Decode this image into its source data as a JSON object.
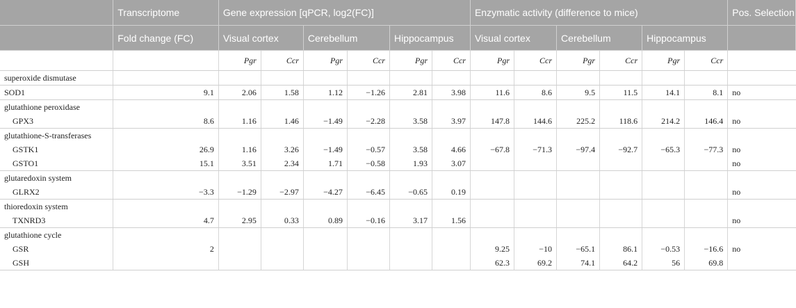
{
  "header": {
    "top": {
      "transcriptome": "Transcriptome",
      "gene_expression": "Gene expression [qPCR, log2(FC)]",
      "enzymatic_activity": "Enzymatic activity (difference to mice)",
      "pos_selection": "Pos. Selection"
    },
    "sub": {
      "fold_change": "Fold change (FC)",
      "ge_visual": "Visual cortex",
      "ge_cerebellum": "Cerebellum",
      "ge_hippocampus": "Hippocampus",
      "ea_visual": "Visual cortex",
      "ea_cerebellum": "Cerebellum",
      "ea_hippocampus": "Hippocampus"
    },
    "species": [
      "Pgr",
      "Ccr",
      "Pgr",
      "Ccr",
      "Pgr",
      "Ccr",
      "Pgr",
      "Ccr",
      "Pgr",
      "Ccr",
      "Pgr",
      "Ccr"
    ]
  },
  "groups": [
    {
      "name": "superoxide dismutase",
      "rows": [
        {
          "gene": "SOD1",
          "fc": "9.1",
          "ge": [
            "2.06",
            "1.58",
            "1.12",
            "−1.26",
            "2.81",
            "3.98"
          ],
          "ea": [
            "11.6",
            "8.6",
            "9.5",
            "11.5",
            "14.1",
            "8.1"
          ],
          "pos": "no"
        }
      ]
    },
    {
      "name": "glutathione peroxidase",
      "rows": [
        {
          "gene": "GPX3",
          "fc": "8.6",
          "ge": [
            "1.16",
            "1.46",
            "−1.49",
            "−2.28",
            "3.58",
            "3.97"
          ],
          "ea": [
            "147.8",
            "144.6",
            "225.2",
            "118.6",
            "214.2",
            "146.4"
          ],
          "pos": "no"
        }
      ]
    },
    {
      "name": "glutathione-S-transferases",
      "rows": [
        {
          "gene": "GSTK1",
          "fc": "26.9",
          "ge": [
            "1.16",
            "3.26",
            "−1.49",
            "−0.57",
            "3.58",
            "4.66"
          ],
          "ea": [
            "−67.8",
            "−71.3",
            "−97.4",
            "−92.7",
            "−65.3",
            "−77.3"
          ],
          "pos": "no"
        },
        {
          "gene": "GSTO1",
          "fc": "15.1",
          "ge": [
            "3.51",
            "2.34",
            "1.71",
            "−0.58",
            "1.93",
            "3.07"
          ],
          "ea": [
            "",
            "",
            "",
            "",
            "",
            ""
          ],
          "pos": "no"
        }
      ]
    },
    {
      "name": "glutaredoxin system",
      "rows": [
        {
          "gene": "GLRX2",
          "fc": "−3.3",
          "ge": [
            "−1.29",
            "−2.97",
            "−4.27",
            "−6.45",
            "−0.65",
            "0.19"
          ],
          "ea": [
            "",
            "",
            "",
            "",
            "",
            ""
          ],
          "pos": "no"
        }
      ]
    },
    {
      "name": "thioredoxin system",
      "rows": [
        {
          "gene": "TXNRD3",
          "fc": "4.7",
          "ge": [
            "2.95",
            "0.33",
            "0.89",
            "−0.16",
            "3.17",
            "1.56"
          ],
          "ea": [
            "",
            "",
            "",
            "",
            "",
            ""
          ],
          "pos": "no"
        }
      ]
    },
    {
      "name": "glutathione cycle",
      "rows": [
        {
          "gene": "GSR",
          "fc": "2",
          "ge": [
            "",
            "",
            "",
            "",
            "",
            ""
          ],
          "ea": [
            "9.25",
            "−10",
            "−65.1",
            "86.1",
            "−0.53",
            "−16.6"
          ],
          "pos": "no"
        },
        {
          "gene": "GSH",
          "fc": "",
          "ge": [
            "",
            "",
            "",
            "",
            "",
            ""
          ],
          "ea": [
            "62.3",
            "69.2",
            "74.1",
            "64.2",
            "56",
            "69.8"
          ],
          "pos": ""
        }
      ]
    }
  ]
}
